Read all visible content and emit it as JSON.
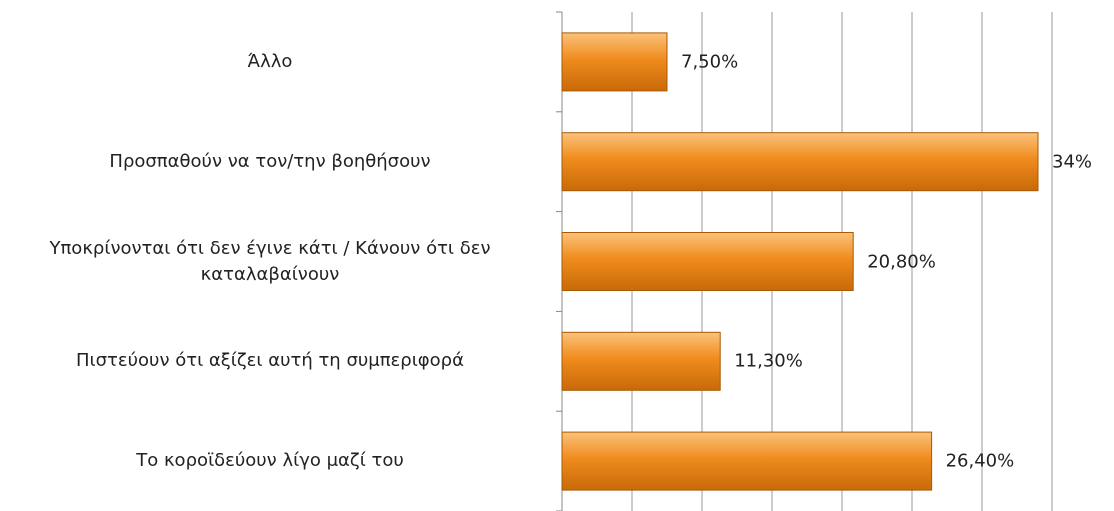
{
  "chart_data": {
    "type": "bar",
    "orientation": "horizontal",
    "categories": [
      "Άλλο",
      "Προσπαθούν να τον/την βοηθήσουν",
      "Υποκρίνονται ότι δεν έγινε κάτι / Κάνουν ότι δεν καταλαβαίνουν",
      "Πιστεύουν ότι αξίζει αυτή τη συμπεριφορά",
      "Το κοροϊδεύουν λίγο μαζί του"
    ],
    "values": [
      7.5,
      34,
      20.8,
      11.3,
      26.4
    ],
    "value_labels": [
      "7,50%",
      "34%",
      "20,80%",
      "11,30%",
      "26,40%"
    ],
    "color": "#f08c1e",
    "xlim": [
      0,
      35
    ],
    "xticks": [
      0,
      5,
      10,
      15,
      20,
      25,
      30,
      35
    ],
    "grid": true
  }
}
